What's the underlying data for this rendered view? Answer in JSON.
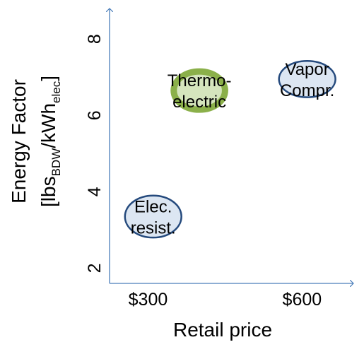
{
  "chart_data": {
    "type": "scatter",
    "xlabel": "Retail price",
    "ylabel_line1": "Energy Factor",
    "ylabel_unit": {
      "open": "[lbs",
      "sub1": "BDW",
      "mid": "/kWh",
      "sub2": "elec",
      "close": "]"
    },
    "x_ticks": [
      {
        "value": 300,
        "label": "$300"
      },
      {
        "value": 600,
        "label": "$600"
      }
    ],
    "y_ticks": [
      {
        "value": 2,
        "label": "2"
      },
      {
        "value": 4,
        "label": "4"
      },
      {
        "value": 6,
        "label": "6"
      },
      {
        "value": 8,
        "label": "8"
      }
    ],
    "xlim": [
      225,
      700
    ],
    "ylim": [
      1.6,
      8.8
    ],
    "grid": false,
    "legend": "none",
    "points": [
      {
        "label_lines": [
          "Thermo-",
          "electric"
        ],
        "x": 400,
        "y": 6.65,
        "x_span": [
          350,
          450
        ],
        "y_span": [
          6.15,
          7.15
        ],
        "fill": "#d5e5bd",
        "stroke": "#8bb04a",
        "emphasized": true
      },
      {
        "label_lines": [
          "Vapor",
          "Compr."
        ],
        "x": 610,
        "y": 6.95,
        "x_span": [
          555,
          665
        ],
        "y_span": [
          6.5,
          7.45
        ],
        "fill": "#dce6f2",
        "stroke": "#254a7d",
        "emphasized": false
      },
      {
        "label_lines": [
          "Elec.",
          "resist."
        ],
        "x": 310,
        "y": 3.35,
        "x_span": [
          255,
          365
        ],
        "y_span": [
          2.8,
          3.9
        ],
        "fill": "#dce6f2",
        "stroke": "#254a7d",
        "emphasized": false
      }
    ],
    "colors": {
      "axis": "#4a7ebb",
      "text": "#000000"
    }
  }
}
